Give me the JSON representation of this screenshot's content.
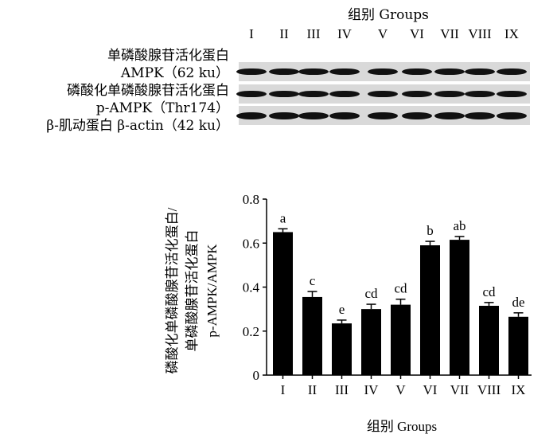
{
  "blot_panel": {
    "title": "组别 Groups",
    "lanes": [
      "I",
      "II",
      "III",
      "IV",
      "V",
      "VI",
      "VII",
      "VIII",
      "IX"
    ],
    "rows": [
      {
        "label_cn": "单磷酸腺苷活化蛋白",
        "label_en": "AMPK（62 ku）"
      },
      {
        "label_cn": "磷酸化单磷酸腺苷活化蛋白",
        "label_en": "p-AMPK（Thr174）"
      },
      {
        "label_cn": "β-肌动蛋白  β-actin（42 ku）",
        "label_en": ""
      }
    ]
  },
  "chart_data": {
    "type": "bar",
    "categories": [
      "I",
      "II",
      "III",
      "IV",
      "V",
      "VI",
      "VII",
      "VIII",
      "IX"
    ],
    "values": [
      0.65,
      0.355,
      0.235,
      0.3,
      0.32,
      0.59,
      0.615,
      0.315,
      0.265
    ],
    "errors": [
      0.015,
      0.025,
      0.015,
      0.022,
      0.025,
      0.018,
      0.015,
      0.015,
      0.018
    ],
    "significance_letters": [
      "a",
      "c",
      "e",
      "cd",
      "cd",
      "b",
      "ab",
      "cd",
      "de"
    ],
    "xlabel": "组别 Groups",
    "ylabel_lines": [
      "磷酸化单磷酸腺苷活化蛋白/",
      "单磷酸腺苷活化蛋白",
      "p-AMPK/AMPK"
    ],
    "ylim": [
      0,
      0.8
    ],
    "yticks": [
      "0",
      "0.2",
      "0.4",
      "0.6",
      "0.8"
    ],
    "bar_color": "#000000",
    "grid": false
  }
}
